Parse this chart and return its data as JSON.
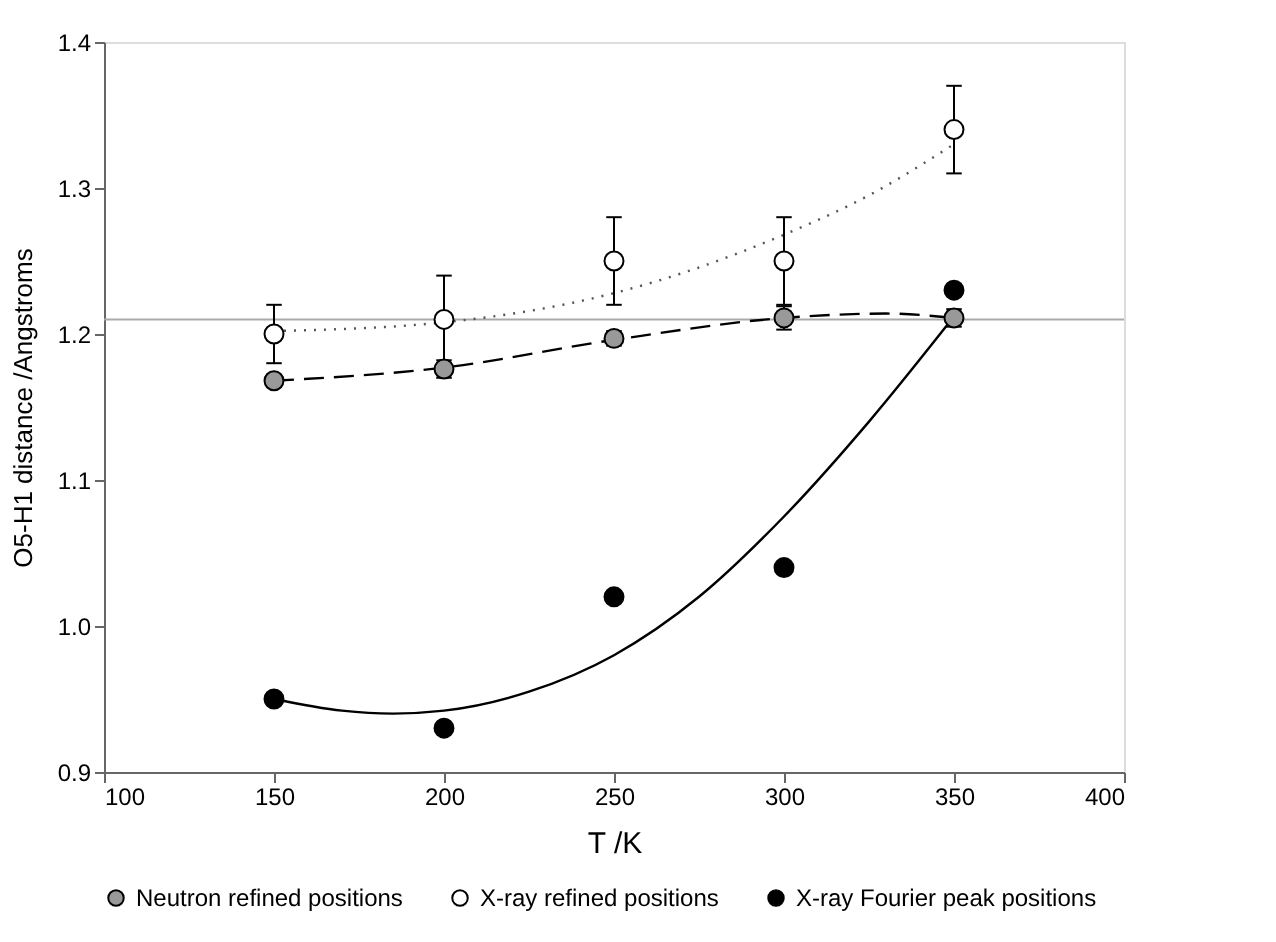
{
  "chart_data": {
    "type": "scatter",
    "xlabel": "T /K",
    "ylabel": "O5-H1 distance /Angstroms",
    "x": [
      150,
      200,
      250,
      300,
      350
    ],
    "xlim": [
      100,
      400
    ],
    "xticks": [
      100,
      150,
      200,
      250,
      300,
      350,
      400
    ],
    "ylim": [
      0.9,
      1.4
    ],
    "yticks": [
      {
        "value": 0.9,
        "label": "0.9"
      },
      {
        "value": 1.0,
        "label": "1.0"
      },
      {
        "value": 1.1,
        "label": "1.1"
      },
      {
        "value": 1.2,
        "label": "1.2"
      },
      {
        "value": 1.3,
        "label": "1.3"
      },
      {
        "value": 1.4,
        "label": "1.4"
      }
    ],
    "grid": false,
    "legend": "bottom",
    "marker": "circle",
    "ref_lines": [
      {
        "axis": "y",
        "value": 1.21,
        "color": "#aaaaaa",
        "line_style": "solid"
      }
    ],
    "series": [
      {
        "type": "line",
        "marker": "none",
        "color": "#000000",
        "line_style": "dashed",
        "x": [
          150,
          200,
          250,
          300,
          330,
          350
        ],
        "values": [
          1.168,
          1.177,
          1.196,
          1.211,
          1.214,
          1.211
        ]
      },
      {
        "type": "line",
        "marker": "none",
        "color": "#555555",
        "line_style": "dotted",
        "x": [
          150,
          200,
          250,
          300,
          325,
          350
        ],
        "values": [
          1.202,
          1.208,
          1.228,
          1.268,
          1.295,
          1.33
        ]
      },
      {
        "type": "line",
        "marker": "none",
        "color": "#000000",
        "line_style": "solid",
        "x": [
          150,
          170,
          185,
          200,
          225,
          250,
          275,
          300,
          325,
          350
        ],
        "values": [
          0.95,
          0.942,
          0.94,
          0.942,
          0.955,
          0.98,
          1.02,
          1.075,
          1.14,
          1.212
        ]
      },
      {
        "name": "Neutron refined positions",
        "color": "#999999",
        "values": [
          1.168,
          1.176,
          1.197,
          1.211,
          1.211
        ],
        "errors": [
          0.004,
          0.006,
          0.005,
          0.008,
          0.006
        ]
      },
      {
        "name": "X-ray refined positions",
        "color": "#ffffff",
        "values": [
          1.2,
          1.21,
          1.25,
          1.25,
          1.34
        ],
        "errors": [
          0.02,
          0.03,
          0.03,
          0.03,
          0.03
        ]
      },
      {
        "name": "X-ray Fourier peak positions",
        "color": "#000000",
        "values": [
          0.95,
          0.93,
          1.02,
          1.04,
          1.23
        ]
      }
    ]
  }
}
